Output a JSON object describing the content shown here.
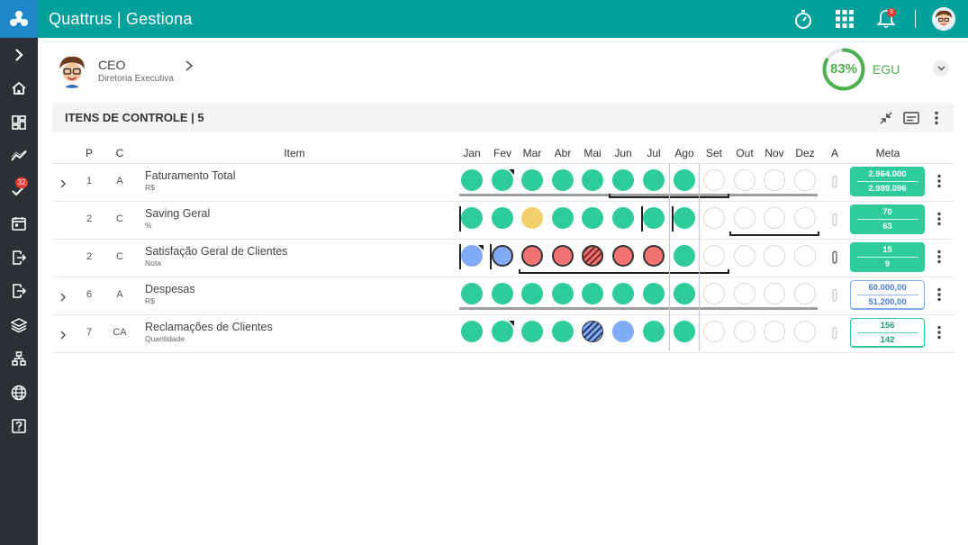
{
  "app": {
    "title": "Quattrus | Gestiona",
    "notif_count": "9"
  },
  "sidebar": {
    "badge": "32",
    "items": [
      "chevron-right",
      "home",
      "dashboard",
      "trend",
      "tasks",
      "calendar",
      "exit",
      "exit-2",
      "layers",
      "hierarchy",
      "globe",
      "help"
    ]
  },
  "profile": {
    "role": "CEO",
    "department": "Diretoria Executiva"
  },
  "egu": {
    "percent": "83%",
    "label": "EGU",
    "value": 0.83
  },
  "section": {
    "title": "ITENS DE CONTROLE | 5"
  },
  "headers": {
    "p": "P",
    "c": "C",
    "item": "Item",
    "months": [
      "Jan",
      "Fev",
      "Mar",
      "Abr",
      "Mai",
      "Jun",
      "Jul",
      "Ago",
      "Set",
      "Out",
      "Nov",
      "Dez"
    ],
    "a": "A",
    "meta": "Meta"
  },
  "colors": {
    "green": "#2ecc9a",
    "yellow": "#f2d06b",
    "blue": "#80abf7",
    "red": "#f27272",
    "teal": "#00a19b"
  },
  "rows": [
    {
      "p": "1",
      "c": "A",
      "name": "Faturamento Total",
      "unit": "R$",
      "expandable": true,
      "status": [
        "green",
        "green",
        "green",
        "green",
        "green",
        "green",
        "green",
        "green",
        "empty",
        "empty",
        "empty",
        "empty"
      ],
      "meta_top": "2.964.000",
      "meta_bottom": "2.989.096",
      "meta_style": "filled"
    },
    {
      "p": "2",
      "c": "C",
      "name": "Saving Geral",
      "unit": "%",
      "expandable": false,
      "status": [
        "green",
        "green",
        "yellow",
        "green",
        "green",
        "green",
        "green",
        "green",
        "empty",
        "empty",
        "empty",
        "empty"
      ],
      "meta_top": "70",
      "meta_bottom": "63",
      "meta_style": "filled"
    },
    {
      "p": "2",
      "c": "C",
      "name": "Satisfação Geral de Clientes",
      "unit": "Nota",
      "expandable": false,
      "status": [
        "blue",
        "blue",
        "red",
        "red",
        "red-hatched",
        "red",
        "red",
        "green",
        "empty",
        "empty",
        "empty",
        "empty"
      ],
      "meta_top": "15",
      "meta_bottom": "9",
      "meta_style": "filled"
    },
    {
      "p": "6",
      "c": "A",
      "name": "Despesas",
      "unit": "R$",
      "expandable": true,
      "status": [
        "green",
        "green",
        "green",
        "green",
        "green",
        "green",
        "green",
        "green",
        "empty",
        "empty",
        "empty",
        "empty"
      ],
      "meta_top": "60.000,00",
      "meta_bottom": "51.200,00",
      "meta_style": "outline-blue"
    },
    {
      "p": "7",
      "c": "CA",
      "name": "Reclamações de Clientes",
      "unit": "Quantidade",
      "expandable": true,
      "status": [
        "green",
        "green",
        "green",
        "green",
        "blue-hatched",
        "blue",
        "green",
        "green",
        "empty",
        "empty",
        "empty",
        "empty"
      ],
      "meta_top": "156",
      "meta_bottom": "142",
      "meta_style": "outline-green"
    }
  ]
}
